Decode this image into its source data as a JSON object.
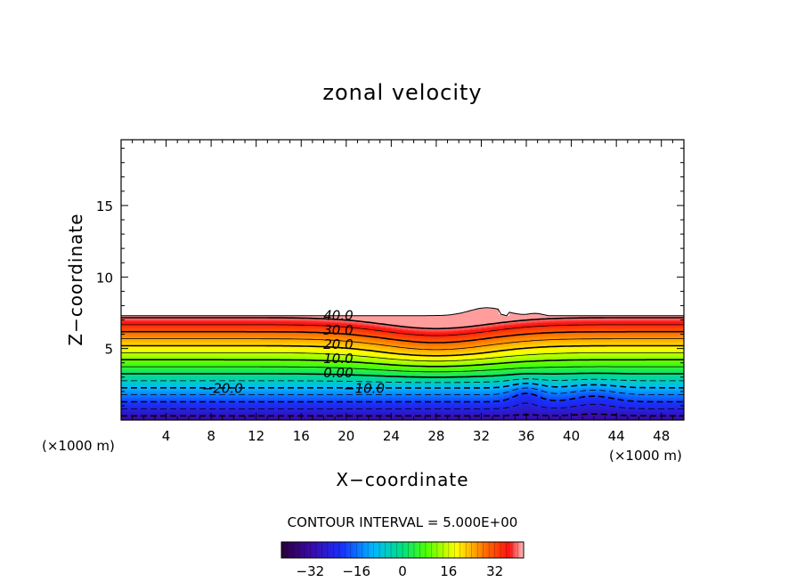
{
  "chart_data": {
    "type": "contour",
    "title": "zonal velocity",
    "xlabel": "X−coordinate",
    "ylabel": "Z−coordinate",
    "x_unit_left": "(×1000 m)",
    "x_unit_right": "(×1000 m)",
    "xlim": [
      0,
      50
    ],
    "ylim": [
      0,
      19.6
    ],
    "x_ticks": [
      4,
      8,
      12,
      16,
      20,
      24,
      28,
      32,
      36,
      40,
      44,
      48
    ],
    "x_tick_labels": [
      "4",
      "8",
      "12",
      "16",
      "20",
      "24",
      "28",
      "32",
      "36",
      "40",
      "44",
      "48"
    ],
    "y_ticks": [
      5,
      10,
      15
    ],
    "y_tick_labels": [
      "5",
      "10",
      "15"
    ],
    "contour_interval_text": "CONTOUR INTERVAL = 5.000E+00",
    "contour_levels": [
      -30,
      -25,
      -20,
      -15,
      -10,
      -5,
      0,
      5,
      10,
      15,
      20,
      25,
      30,
      35,
      40
    ],
    "contour_labels": [
      {
        "text": "40.0",
        "x": 19.3,
        "z": 7.3
      },
      {
        "text": "30.0",
        "x": 19.3,
        "z": 6.3
      },
      {
        "text": "20.0",
        "x": 19.3,
        "z": 5.3
      },
      {
        "text": "10.0",
        "x": 19.3,
        "z": 4.3
      },
      {
        "text": "0.00",
        "x": 19.3,
        "z": 3.3
      },
      {
        "text": "−10.0",
        "x": 21.6,
        "z": 2.2
      },
      {
        "text": "−20.0",
        "x": 9.0,
        "z": 2.2
      }
    ],
    "colorbar": {
      "range": [
        -42,
        42
      ],
      "ticks": [
        -32,
        -16,
        0,
        16,
        32
      ],
      "tick_labels": [
        "−32",
        "−16",
        "0",
        "16",
        "32"
      ]
    },
    "wind_top_height": 7.3,
    "notes_visible": false
  }
}
